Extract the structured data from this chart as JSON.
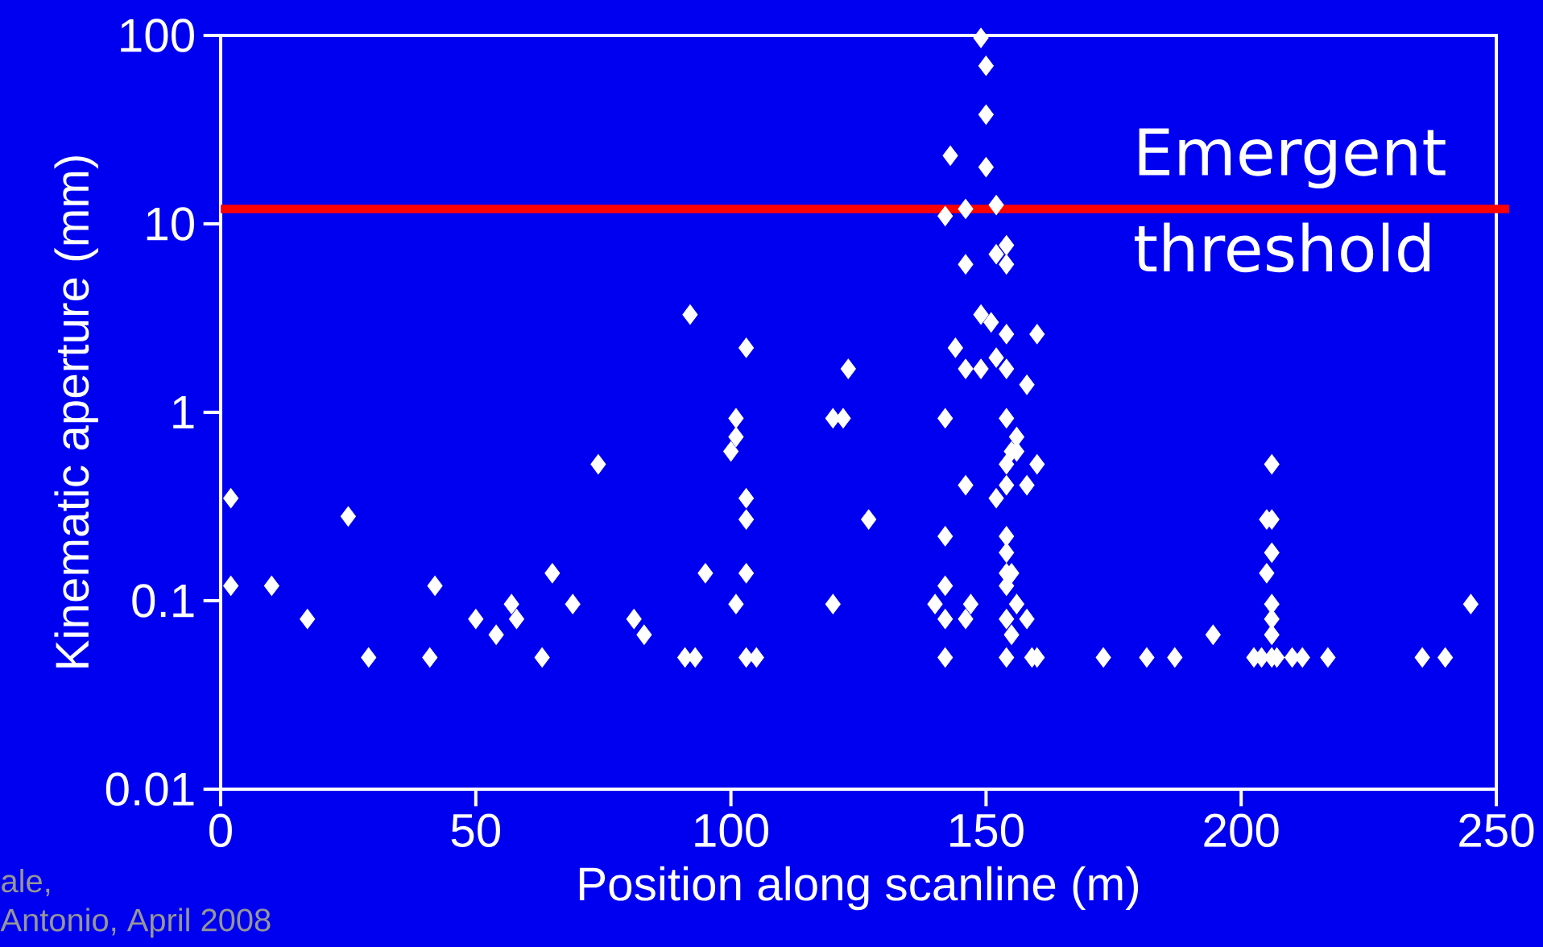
{
  "chart_data": {
    "type": "scatter",
    "xlabel": "Position along scanline (m)",
    "ylabel": "Kinematic aperture (mm)",
    "log": "y",
    "xlim": [
      0,
      250
    ],
    "ylim": [
      0.01,
      100
    ],
    "xticks": [
      0,
      50,
      100,
      150,
      200,
      250
    ],
    "yticks": [
      0.01,
      0.1,
      1,
      10,
      100
    ],
    "marker": "diamond",
    "ref_lines": [
      {
        "axis": "y",
        "value": 12,
        "label": "Emergent threshold",
        "color": "#ff0000"
      }
    ],
    "annotations": [
      "ale,",
      "Antonio, April 2008"
    ],
    "series": [
      {
        "color": "#ffffff",
        "x": [
          2,
          2,
          10,
          17,
          25,
          29,
          41,
          42,
          50,
          54,
          57,
          58,
          63,
          65,
          69,
          74,
          81,
          83,
          91,
          93,
          92,
          95,
          101,
          101,
          100,
          101,
          103,
          103,
          103,
          103,
          103,
          105,
          120,
          122,
          120,
          123,
          127,
          140,
          142,
          142,
          142,
          142,
          142,
          142,
          143,
          144,
          146,
          146,
          147,
          146,
          146,
          146,
          149,
          149,
          149,
          150,
          150,
          150,
          151,
          152,
          152,
          152,
          152,
          154,
          154,
          154,
          154,
          154,
          154,
          154,
          154,
          154,
          154,
          154,
          154,
          154,
          155,
          156,
          156,
          156,
          155,
          155,
          158,
          158,
          158,
          159,
          160,
          160,
          160,
          173,
          181.5,
          187,
          194.5,
          206,
          205,
          206,
          206,
          205,
          206,
          206,
          206,
          202.5,
          204,
          206,
          207,
          210,
          212,
          217,
          235.5,
          240,
          245
        ],
        "values": [
          0.35,
          0.12,
          0.12,
          0.08,
          0.28,
          0.05,
          0.05,
          0.12,
          0.08,
          0.066,
          0.096,
          0.08,
          0.05,
          0.14,
          0.096,
          0.53,
          0.08,
          0.066,
          0.05,
          0.05,
          3.3,
          0.14,
          0.93,
          0.74,
          0.62,
          0.096,
          2.2,
          0.35,
          0.27,
          0.14,
          0.05,
          0.05,
          0.93,
          0.93,
          0.096,
          1.7,
          0.27,
          0.096,
          0.93,
          0.22,
          0.12,
          0.08,
          0.05,
          11,
          23,
          2.2,
          0.41,
          0.08,
          0.096,
          1.7,
          6.1,
          12,
          1.7,
          3.3,
          97,
          69,
          38,
          20,
          3.0,
          1.95,
          0.35,
          6.9,
          12.6,
          2.6,
          1.7,
          0.93,
          0.53,
          0.41,
          0.22,
          0.18,
          0.14,
          0.12,
          0.08,
          0.05,
          7.7,
          6.1,
          0.62,
          0.62,
          0.74,
          0.096,
          0.066,
          0.14,
          1.4,
          0.41,
          0.08,
          0.05,
          0.05,
          2.6,
          0.53,
          0.05,
          0.05,
          0.05,
          0.066,
          0.53,
          0.27,
          0.27,
          0.18,
          0.14,
          0.096,
          0.08,
          0.066,
          0.05,
          0.05,
          0.05,
          0.05,
          0.05,
          0.05,
          0.05,
          0.05,
          0.05,
          0.096
        ]
      }
    ]
  }
}
